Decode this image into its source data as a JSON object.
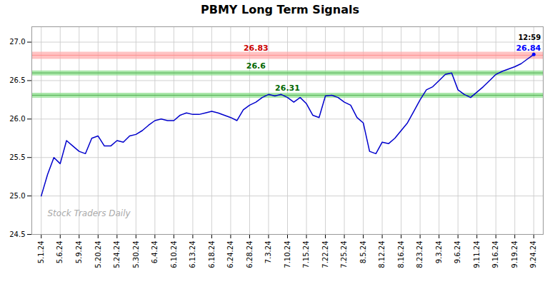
{
  "chart_data": {
    "type": "line",
    "title": "PBMY Long Term Signals",
    "watermark": "Stock Traders Daily",
    "color": "#0000cc",
    "grid": true,
    "ylim": [
      24.5,
      27.2
    ],
    "yticks": [
      24.5,
      {
        "value": 25,
        "label": "25.0"
      },
      25.5,
      {
        "value": 26,
        "label": "26.0"
      },
      26.5,
      {
        "value": 27,
        "label": "27.0"
      }
    ],
    "categories": [
      "5.1.24",
      null,
      null,
      "5.6.24",
      null,
      null,
      "5.9.24",
      null,
      null,
      "5.20.24",
      null,
      null,
      "5.24.24",
      null,
      null,
      "5.30.24",
      null,
      null,
      "6.4.24",
      null,
      null,
      "6.10.24",
      null,
      null,
      "6.13.24",
      null,
      null,
      "6.18.24",
      null,
      null,
      "6.24.24",
      null,
      null,
      "6.28.24",
      null,
      null,
      "7.3.24",
      null,
      null,
      "7.10.24",
      null,
      null,
      "7.15.24",
      null,
      null,
      "7.22.24",
      null,
      null,
      "7.25.24",
      null,
      null,
      "8.5.24",
      null,
      null,
      "8.12.24",
      null,
      null,
      "8.16.24",
      null,
      null,
      "8.23.24",
      null,
      null,
      "9.3.24",
      null,
      null,
      "9.6.24",
      null,
      null,
      "9.11.24",
      null,
      null,
      "9.16.24",
      null,
      null,
      "9.19.24",
      null,
      null,
      "9.24.24"
    ],
    "values": [
      25.0,
      25.28,
      25.5,
      25.42,
      25.72,
      25.65,
      25.58,
      25.55,
      25.75,
      25.78,
      25.65,
      25.65,
      25.72,
      25.7,
      25.78,
      25.8,
      25.85,
      25.92,
      25.98,
      26.0,
      25.98,
      25.98,
      26.05,
      26.08,
      26.06,
      26.06,
      26.08,
      26.1,
      26.08,
      26.05,
      26.02,
      25.98,
      26.12,
      26.18,
      26.22,
      26.28,
      26.32,
      26.3,
      26.32,
      26.28,
      26.22,
      26.28,
      26.2,
      26.05,
      26.02,
      26.3,
      26.31,
      26.28,
      26.22,
      26.18,
      26.02,
      25.95,
      25.58,
      25.55,
      25.7,
      25.68,
      25.75,
      25.85,
      25.95,
      26.1,
      26.25,
      26.38,
      26.42,
      26.5,
      26.58,
      26.6,
      26.38,
      26.32,
      26.28,
      26.35,
      26.42,
      26.5,
      26.58,
      26.62,
      26.65,
      26.68,
      26.72,
      26.78,
      26.84
    ],
    "levels": [
      {
        "value": 26.83,
        "label": "26.83",
        "color": "#ffaaaa",
        "line_color": "#ff8888",
        "label_color": "#cc0000"
      },
      {
        "value": 26.6,
        "label": "26.6",
        "color": "#88dd88",
        "line_color": "#44aa44",
        "label_color": "#006600"
      },
      {
        "value": 26.31,
        "label": "26.31",
        "color": "#88dd88",
        "line_color": "#44aa44",
        "label_color": "#006600"
      }
    ],
    "last_point": {
      "label": "12:59",
      "value": 26.84,
      "color": "#0000ff",
      "label_color": "#000000"
    }
  }
}
